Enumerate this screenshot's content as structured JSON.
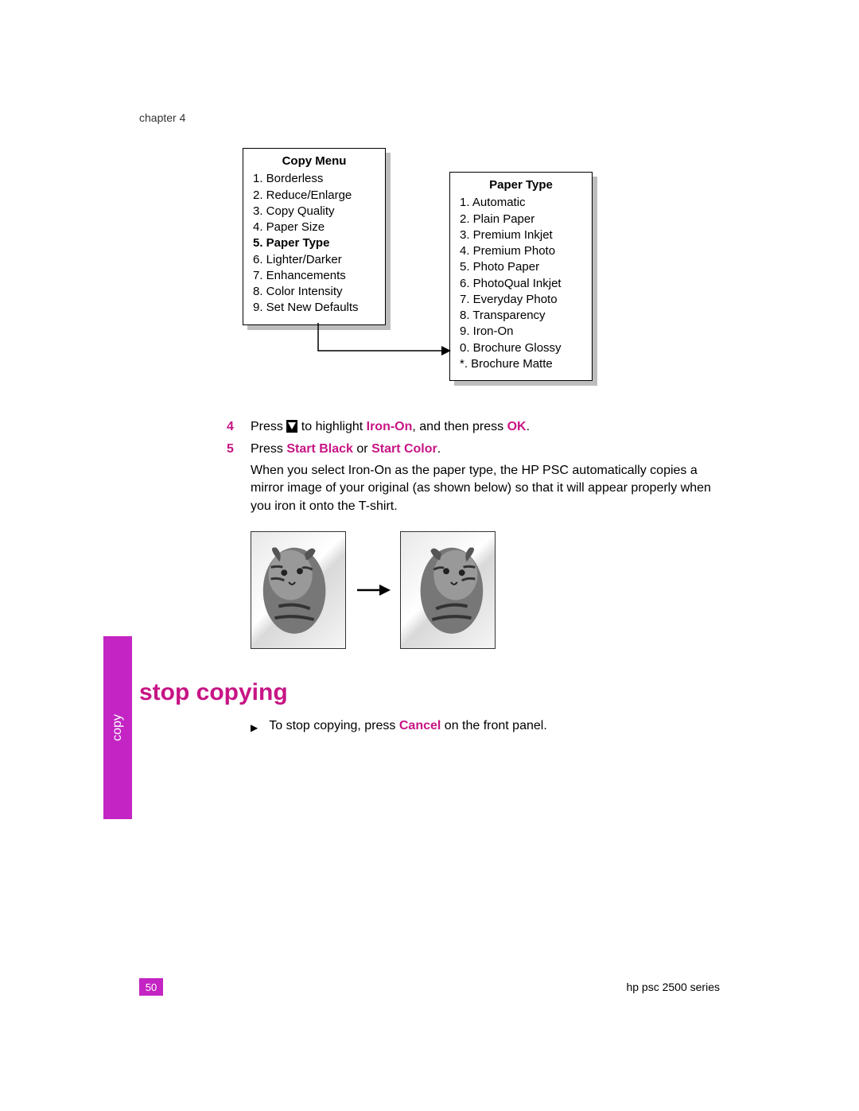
{
  "chapter": "chapter 4",
  "colors": {
    "accent": "#c71585",
    "tab": "#c324c3",
    "shadow": "#bdbdbd",
    "text": "#000000",
    "bg": "#ffffff"
  },
  "copy_menu": {
    "title": "Copy Menu",
    "items": [
      {
        "n": "1.",
        "label": "Borderless",
        "bold": false
      },
      {
        "n": "2.",
        "label": "Reduce/Enlarge",
        "bold": false
      },
      {
        "n": "3.",
        "label": "Copy Quality",
        "bold": false
      },
      {
        "n": "4.",
        "label": "Paper Size",
        "bold": false
      },
      {
        "n": "5.",
        "label": "Paper Type",
        "bold": true
      },
      {
        "n": "6.",
        "label": "Lighter/Darker",
        "bold": false
      },
      {
        "n": "7.",
        "label": "Enhancements",
        "bold": false
      },
      {
        "n": "8.",
        "label": "Color Intensity",
        "bold": false
      },
      {
        "n": "9.",
        "label": "Set New Defaults",
        "bold": false
      }
    ]
  },
  "paper_type_menu": {
    "title": "Paper Type",
    "items": [
      {
        "n": "1.",
        "label": "Automatic"
      },
      {
        "n": "2.",
        "label": "Plain Paper"
      },
      {
        "n": "3.",
        "label": "Premium Inkjet"
      },
      {
        "n": "4.",
        "label": "Premium Photo"
      },
      {
        "n": "5.",
        "label": "Photo Paper"
      },
      {
        "n": "6.",
        "label": "PhotoQual Inkjet"
      },
      {
        "n": "7.",
        "label": "Everyday Photo"
      },
      {
        "n": "8.",
        "label": "Transparency"
      },
      {
        "n": "9.",
        "label": "Iron-On"
      },
      {
        "n": "0.",
        "label": "Brochure Glossy"
      },
      {
        "n": "*.",
        "label": "Brochure Matte"
      }
    ]
  },
  "step4": {
    "num": "4",
    "pre": "Press ",
    "mid": " to highlight ",
    "hl1": "Iron-On",
    "post1": ", and then press ",
    "hl2": "OK",
    "end": "."
  },
  "step5": {
    "num": "5",
    "pre": "Press ",
    "hl1": "Start Black",
    "or": " or ",
    "hl2": "Start Color",
    "end": ".",
    "body": "When you select Iron-On as the paper type, the HP PSC automatically copies a mirror image of your original (as shown below) so that it will appear properly when you iron it onto the T-shirt."
  },
  "section_heading": "stop copying",
  "stop_line": {
    "pre": "To stop copying, press ",
    "hl": "Cancel",
    "post": " on the front panel."
  },
  "side_tab": "copy",
  "footer": {
    "page": "50",
    "product": "hp psc 2500 series"
  }
}
